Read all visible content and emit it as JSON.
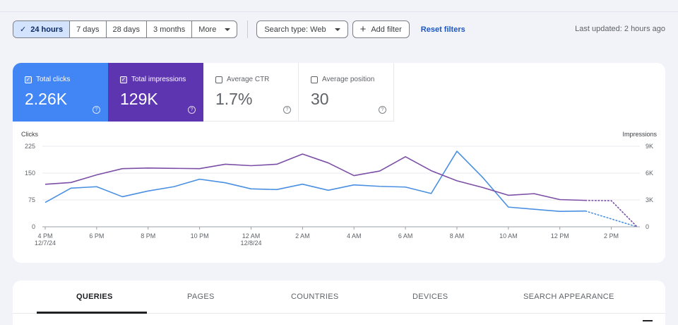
{
  "toolbar": {
    "ranges": [
      "24 hours",
      "7 days",
      "28 days",
      "3 months"
    ],
    "more_label": "More",
    "search_type_label": "Search type: Web",
    "add_filter_label": "Add filter",
    "reset_label": "Reset filters",
    "last_updated": "Last updated: 2 hours ago"
  },
  "metrics": {
    "clicks": {
      "label": "Total clicks",
      "value": "2.26K"
    },
    "impressions": {
      "label": "Total impressions",
      "value": "129K"
    },
    "ctr": {
      "label": "Average CTR",
      "value": "1.7%"
    },
    "position": {
      "label": "Average position",
      "value": "30"
    }
  },
  "tabs": [
    "QUERIES",
    "PAGES",
    "COUNTRIES",
    "DEVICES",
    "SEARCH APPEARANCE"
  ],
  "chart_data": {
    "type": "line",
    "left_axis_label": "Clicks",
    "right_axis_label": "Impressions",
    "y_left_ticks": [
      "225",
      "150",
      "75",
      "0"
    ],
    "y_right_ticks": [
      "9K",
      "6K",
      "3K",
      "0"
    ],
    "ylim_left": [
      0,
      225
    ],
    "ylim_right": [
      0,
      9000
    ],
    "x_tick_labels": [
      {
        "label": "4 PM",
        "sub": "12/7/24",
        "index": 0
      },
      {
        "label": "6 PM",
        "sub": "",
        "index": 2
      },
      {
        "label": "8 PM",
        "sub": "",
        "index": 4
      },
      {
        "label": "10 PM",
        "sub": "",
        "index": 6
      },
      {
        "label": "12 AM",
        "sub": "12/8/24",
        "index": 8
      },
      {
        "label": "2 AM",
        "sub": "",
        "index": 10
      },
      {
        "label": "4 AM",
        "sub": "",
        "index": 12
      },
      {
        "label": "6 AM",
        "sub": "",
        "index": 14
      },
      {
        "label": "8 AM",
        "sub": "",
        "index": 16
      },
      {
        "label": "10 AM",
        "sub": "",
        "index": 18
      },
      {
        "label": "12 PM",
        "sub": "",
        "index": 20
      },
      {
        "label": "2 PM",
        "sub": "",
        "index": 22
      }
    ],
    "point_count": 24,
    "series": [
      {
        "name": "Total clicks",
        "color": "#4a90e2",
        "axis": "left",
        "values": [
          68,
          108,
          112,
          84,
          100,
          112,
          133,
          123,
          106,
          104,
          119,
          102,
          117,
          113,
          111,
          93,
          211,
          138,
          55,
          49,
          43,
          44
        ],
        "projected": [
          null,
          0
        ]
      },
      {
        "name": "Total impressions",
        "color": "#7b4fa6",
        "axis": "right",
        "values": [
          4750,
          4950,
          5800,
          6500,
          6570,
          6530,
          6500,
          6990,
          6830,
          6990,
          8130,
          7140,
          5720,
          6230,
          7830,
          6270,
          5140,
          4390,
          3520,
          3700,
          3040,
          2950
        ],
        "projected": [
          2920,
          0
        ]
      }
    ]
  }
}
